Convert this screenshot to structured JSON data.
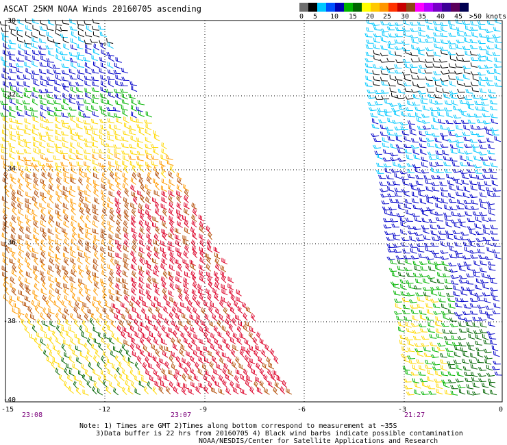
{
  "title": "ASCAT 25KM NOAA Winds 20160705 ascending",
  "scale": {
    "labels": [
      "0",
      "5",
      "10",
      "15",
      "20",
      "25",
      "30",
      "35",
      "40",
      "45",
      ">50 knots"
    ],
    "colors": [
      "#6e6e6e",
      "#000000",
      "#00c8ff",
      "#0050ff",
      "#0000b4",
      "#00b400",
      "#006400",
      "#ffff00",
      "#ffc800",
      "#ff9600",
      "#ff3200",
      "#c80000",
      "#8b4513",
      "#ff00ff",
      "#b400ff",
      "#7800c8",
      "#3c0096",
      "#5a005a",
      "#000050"
    ]
  },
  "lat_labels": [
    "-30",
    "-32",
    "-34",
    "-36",
    "-38",
    "-40"
  ],
  "lon_labels": [
    "-15",
    "-12",
    "-9",
    "-6",
    "-3",
    "0"
  ],
  "time_labels": [
    "23:08",
    "23:07",
    "21:27"
  ],
  "notes": [
    "Note: 1) Times are GMT 2)Times along bottom correspond to measurement at ~35S",
    "3)Data buffer is 22 hrs from 20160705 4) Black wind barbs indicate possible contamination",
    "NOAA/NESDIS/Center for Satellite Applications and Research"
  ],
  "speed_colors": {
    "black": "#000000",
    "cyan": "#00c8ff",
    "blue": "#0000c8",
    "green": "#00b400",
    "darkgreen": "#006400",
    "yellow": "#ffd800",
    "orange": "#ff9a00",
    "brown": "#b4500a",
    "red": "#dc0028"
  }
}
